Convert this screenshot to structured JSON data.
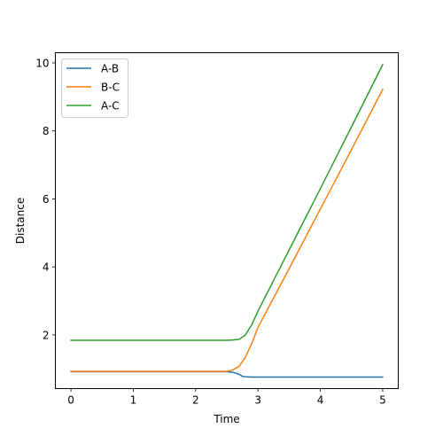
{
  "chart_data": {
    "type": "line",
    "title": "",
    "xlabel": "Time",
    "ylabel": "Distance",
    "xlim": [
      -0.25,
      5.25
    ],
    "ylim": [
      0.42,
      10.3
    ],
    "xticks": [
      0,
      1,
      2,
      3,
      4,
      5
    ],
    "yticks": [
      2,
      4,
      6,
      8,
      10
    ],
    "grid": false,
    "legend_position": "top-left",
    "series": [
      {
        "name": "A-B",
        "color": "#1f77b4",
        "x": [
          0.0,
          0.5,
          1.0,
          1.5,
          2.0,
          2.5,
          2.6,
          2.7,
          2.75,
          2.8,
          2.9,
          3.0,
          3.2,
          3.4,
          3.6,
          3.8,
          4.0,
          4.2,
          4.4,
          4.6,
          4.8,
          5.0
        ],
        "y": [
          0.92,
          0.92,
          0.92,
          0.92,
          0.92,
          0.92,
          0.9,
          0.84,
          0.78,
          0.77,
          0.76,
          0.76,
          0.76,
          0.76,
          0.76,
          0.76,
          0.76,
          0.76,
          0.76,
          0.76,
          0.76,
          0.76
        ]
      },
      {
        "name": "B-C",
        "color": "#ff7f0e",
        "x": [
          0.0,
          0.5,
          1.0,
          1.5,
          2.0,
          2.5,
          2.6,
          2.7,
          2.8,
          2.9,
          3.0,
          3.5,
          4.0,
          4.5,
          5.0
        ],
        "y": [
          0.93,
          0.93,
          0.93,
          0.93,
          0.93,
          0.93,
          0.97,
          1.08,
          1.35,
          1.75,
          2.22,
          3.95,
          5.7,
          7.45,
          9.22
        ]
      },
      {
        "name": "A-C",
        "color": "#2ca02c",
        "x": [
          0.0,
          0.5,
          1.0,
          1.5,
          2.0,
          2.5,
          2.6,
          2.7,
          2.8,
          2.9,
          3.0,
          3.5,
          4.0,
          4.5,
          5.0
        ],
        "y": [
          1.84,
          1.84,
          1.84,
          1.84,
          1.84,
          1.84,
          1.85,
          1.87,
          2.0,
          2.3,
          2.7,
          4.5,
          6.3,
          8.12,
          9.95
        ]
      }
    ]
  }
}
